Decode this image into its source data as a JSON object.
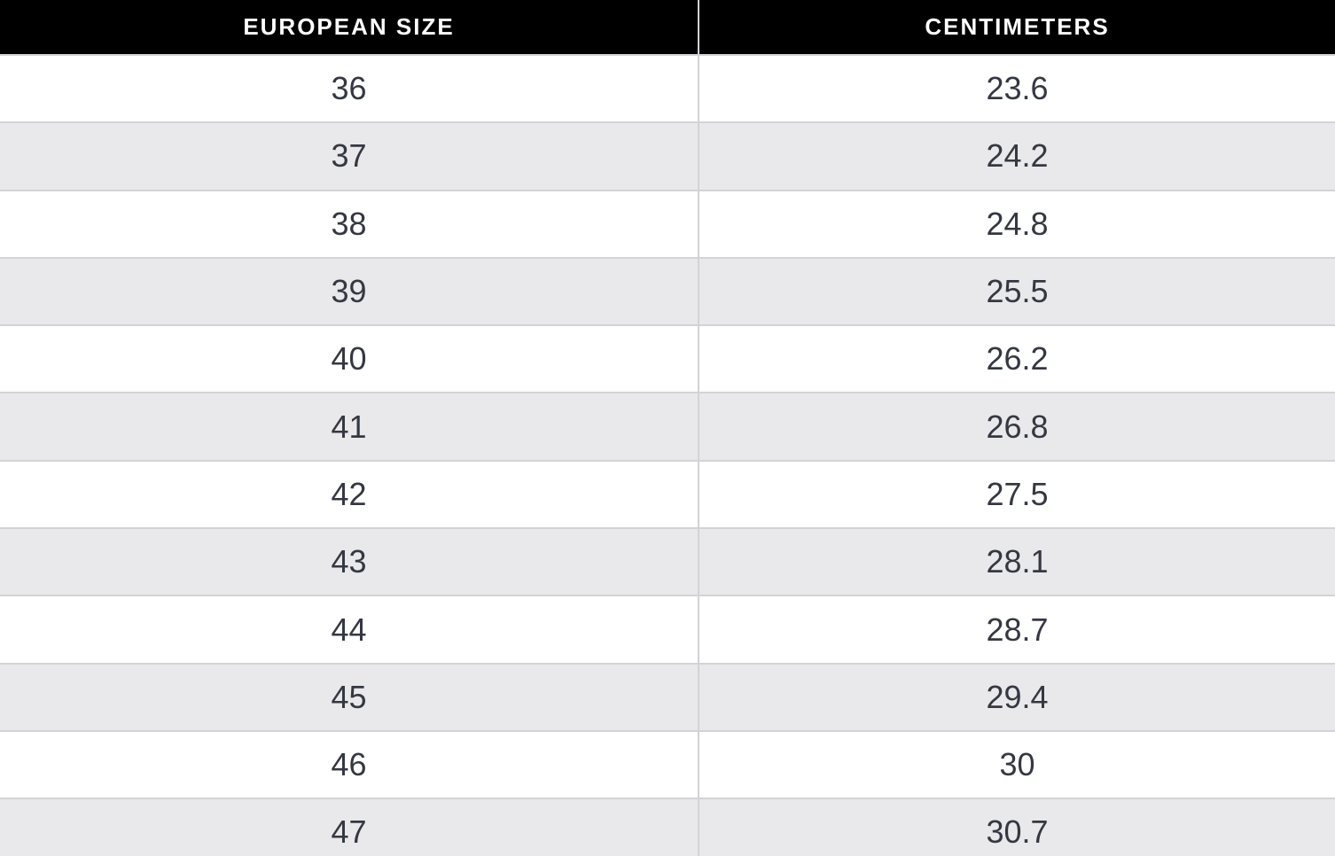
{
  "colors": {
    "header_bg": "#000000",
    "header_text": "#ffffff",
    "row_bg": "#ffffff",
    "row_alt_bg": "#e9e8ea",
    "cell_text": "#343842",
    "border": "#d3d2d5"
  },
  "table": {
    "columns": [
      "EUROPEAN SIZE",
      "CENTIMETERS"
    ],
    "rows": [
      [
        "36",
        "23.6"
      ],
      [
        "37",
        "24.2"
      ],
      [
        "38",
        "24.8"
      ],
      [
        "39",
        "25.5"
      ],
      [
        "40",
        "26.2"
      ],
      [
        "41",
        "26.8"
      ],
      [
        "42",
        "27.5"
      ],
      [
        "43",
        "28.1"
      ],
      [
        "44",
        "28.7"
      ],
      [
        "45",
        "29.4"
      ],
      [
        "46",
        "30"
      ],
      [
        "47",
        "30.7"
      ]
    ]
  },
  "chart_data": {
    "type": "table",
    "columns": [
      "EUROPEAN SIZE",
      "CENTIMETERS"
    ],
    "rows": [
      [
        36,
        23.6
      ],
      [
        37,
        24.2
      ],
      [
        38,
        24.8
      ],
      [
        39,
        25.5
      ],
      [
        40,
        26.2
      ],
      [
        41,
        26.8
      ],
      [
        42,
        27.5
      ],
      [
        43,
        28.1
      ],
      [
        44,
        28.7
      ],
      [
        45,
        29.4
      ],
      [
        46,
        30
      ],
      [
        47,
        30.7
      ]
    ]
  }
}
